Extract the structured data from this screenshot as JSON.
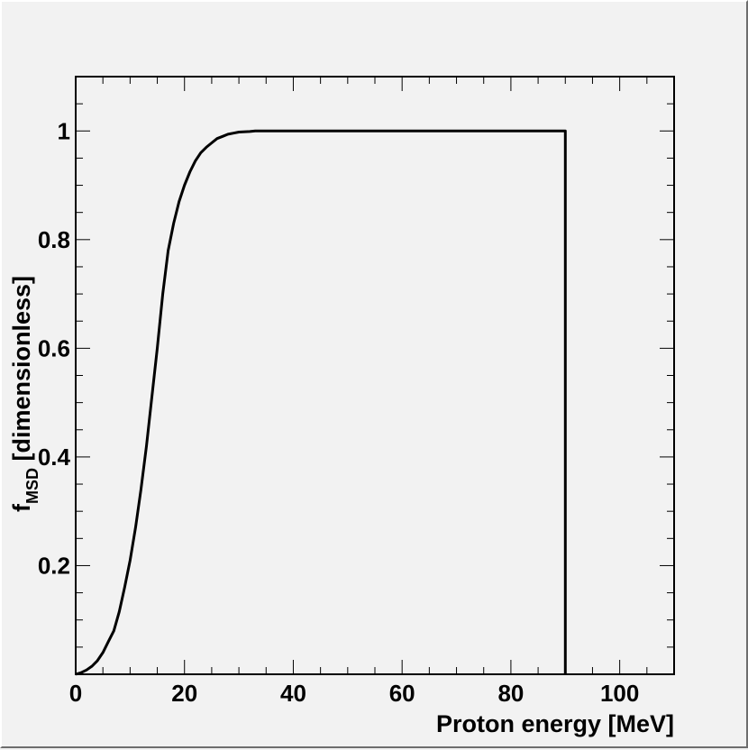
{
  "chart_data": {
    "type": "line",
    "xlabel": "Proton energy [MeV]",
    "ylabel": {
      "main": "f",
      "subscript": "MSD",
      "rest": " [dimensionless]"
    },
    "xlim": [
      0,
      110
    ],
    "ylim": [
      0,
      1.1
    ],
    "x_ticks": [
      0,
      20,
      40,
      60,
      80,
      100
    ],
    "y_ticks": [
      0.2,
      0.4,
      0.6,
      0.8,
      1
    ],
    "grid": false,
    "series": [
      {
        "color": "#000000",
        "x": [
          0,
          1,
          2,
          3,
          4,
          5,
          6,
          7,
          8,
          9,
          10,
          11,
          12,
          13,
          14,
          15,
          16,
          17,
          18,
          19,
          20,
          21,
          22,
          23,
          24,
          25,
          26,
          27,
          28,
          29,
          30,
          32,
          33,
          40,
          50,
          60,
          70,
          80,
          90,
          90
        ],
        "y": [
          0,
          0.003,
          0.008,
          0.015,
          0.025,
          0.04,
          0.06,
          0.08,
          0.115,
          0.16,
          0.21,
          0.27,
          0.34,
          0.42,
          0.51,
          0.6,
          0.7,
          0.78,
          0.83,
          0.87,
          0.9,
          0.925,
          0.945,
          0.96,
          0.97,
          0.978,
          0.986,
          0.99,
          0.994,
          0.996,
          0.998,
          0.999,
          1,
          1,
          1,
          1,
          1,
          1,
          1,
          0
        ]
      }
    ]
  }
}
